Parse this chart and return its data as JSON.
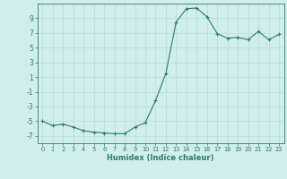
{
  "x": [
    0,
    1,
    2,
    3,
    4,
    5,
    6,
    7,
    8,
    9,
    10,
    11,
    12,
    13,
    14,
    15,
    16,
    17,
    18,
    19,
    20,
    21,
    22,
    23
  ],
  "y": [
    -5.0,
    -5.6,
    -5.4,
    -5.8,
    -6.3,
    -6.5,
    -6.6,
    -6.7,
    -6.7,
    -5.8,
    -5.2,
    -2.2,
    1.5,
    8.5,
    10.3,
    10.4,
    9.2,
    6.9,
    6.3,
    6.4,
    6.1,
    7.2,
    6.1,
    6.8
  ],
  "xlabel": "Humidex (Indice chaleur)",
  "line_color": "#2f7c6e",
  "bg_color": "#d0eeea",
  "grid_color": "#b8dad5",
  "tick_color": "#2f7c6e",
  "ylim": [
    -8,
    11
  ],
  "yticks": [
    -7,
    -5,
    -3,
    -1,
    1,
    3,
    5,
    7,
    9
  ],
  "xlim": [
    -0.5,
    23.5
  ],
  "xticks": [
    0,
    1,
    2,
    3,
    4,
    5,
    6,
    7,
    8,
    9,
    10,
    11,
    12,
    13,
    14,
    15,
    16,
    17,
    18,
    19,
    20,
    21,
    22,
    23
  ]
}
